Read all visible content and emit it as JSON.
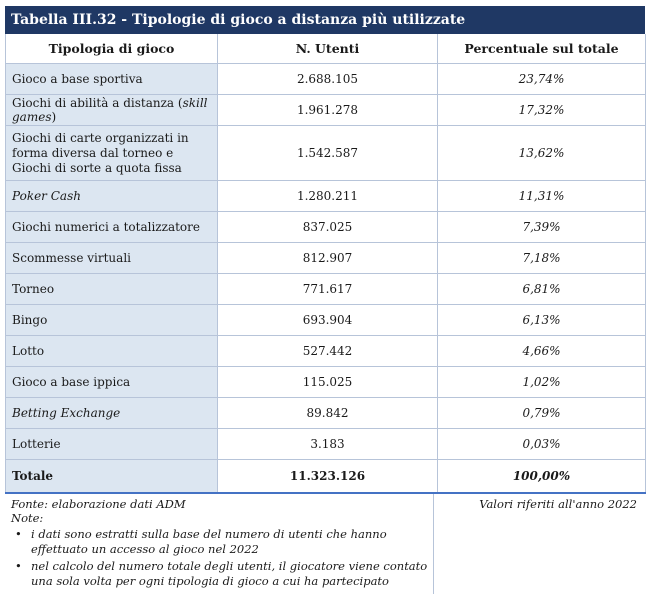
{
  "title": "Tabella III.32 - Tipologie di gioco a distanza più utilizzate",
  "headers": [
    "Tipologia di gioco",
    "N. Utenti",
    "Percentuale sul totale"
  ],
  "rows": [
    {
      "label": "Gioco a base sportiva",
      "users": "2.688.105",
      "pct": "23,74%"
    },
    {
      "label_pre": "Giochi di abilità a distanza (",
      "label_it": "skill games",
      "label_post": ")",
      "users": "1.961.278",
      "pct": "17,32%"
    },
    {
      "label": "Giochi di carte organizzati in forma diversa dal torneo e Giochi di sorte a quota fissa",
      "users": "1.542.587",
      "pct": "13,62%"
    },
    {
      "label_it_only": "Poker Cash",
      "users": "1.280.211",
      "pct": "11,31%"
    },
    {
      "label": "Giochi numerici a totalizzatore",
      "users": "837.025",
      "pct": "7,39%"
    },
    {
      "label": "Scommesse virtuali",
      "users": "812.907",
      "pct": "7,18%"
    },
    {
      "label": "Torneo",
      "users": "771.617",
      "pct": "6,81%"
    },
    {
      "label": "Bingo",
      "users": "693.904",
      "pct": "6,13%"
    },
    {
      "label": "Lotto",
      "users": "527.442",
      "pct": "4,66%"
    },
    {
      "label": "Gioco a base ippica",
      "users": "115.025",
      "pct": "1,02%"
    },
    {
      "label_it_only": "Betting Exchange",
      "users": "89.842",
      "pct": "0,79%"
    },
    {
      "label": "Lotterie",
      "users": "3.183",
      "pct": "0,03%"
    }
  ],
  "total": {
    "label": "Totale",
    "users": "11.323.126",
    "pct": "100,00%"
  },
  "notes": {
    "source": "Fonte: elaborazione dati ADM",
    "notes_label": "Note:",
    "bullets": [
      "i dati sono estratti sulla base del numero di utenti che hanno effettuato un accesso al gioco nel 2022",
      "nel calcolo del numero totale degli utenti, il giocatore viene contato una sola volta per ogni tipologia di gioco a cui ha partecipato"
    ],
    "right": "Valori riferiti all'anno 2022"
  }
}
